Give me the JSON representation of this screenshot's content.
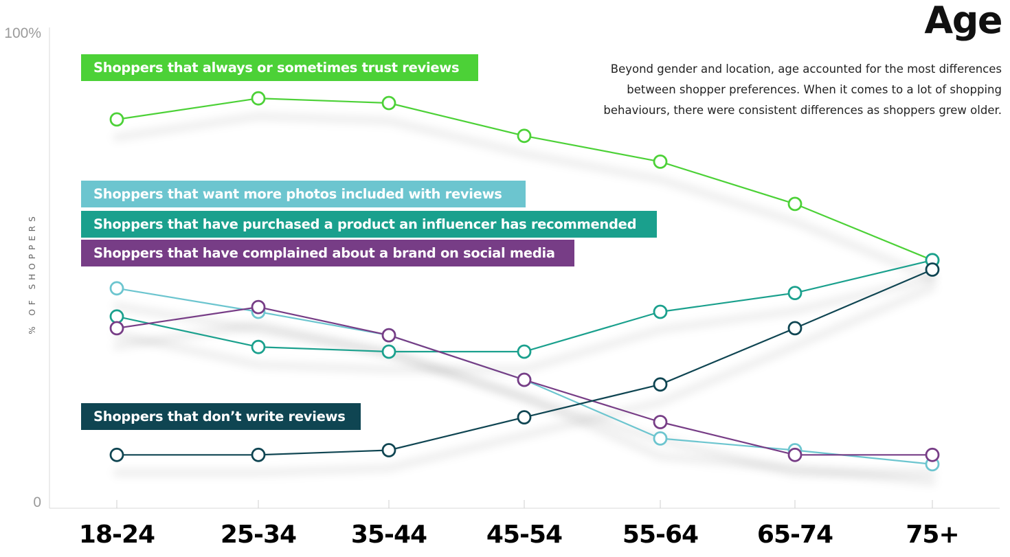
{
  "header": {
    "title": "Age",
    "description": "Beyond gender and location, age accounted for the most differences between shopper preferences. When it comes to a lot of shopping behaviours, there were consistent differences as shoppers grew older."
  },
  "chart_data": {
    "type": "line",
    "title": "Age",
    "xlabel": "",
    "ylabel": "% OF SHOPPERS",
    "ylim": [
      0,
      100
    ],
    "ytick_labels": [
      "0",
      "100%"
    ],
    "categories": [
      "18-24",
      "25-34",
      "35-44",
      "45-54",
      "55-64",
      "65-74",
      "75+"
    ],
    "series": [
      {
        "name": "Shoppers that always or sometimes trust reviews",
        "color": "#4cd137",
        "values": [
          82,
          86.5,
          85.5,
          78.5,
          73,
          64,
          52
        ]
      },
      {
        "name": "Shoppers that want more photos included with reviews",
        "color": "#6cc5cf",
        "values": [
          46,
          41,
          36,
          26.5,
          14,
          11.5,
          8.5
        ]
      },
      {
        "name": "Shoppers that have purchased a product an influencer has recommended",
        "color": "#1aa08d",
        "values": [
          40,
          33.5,
          32.5,
          32.5,
          41,
          45,
          52
        ]
      },
      {
        "name": "Shoppers that have complained about a brand on social media",
        "color": "#773d86",
        "values": [
          37.5,
          42,
          36,
          26.5,
          17.5,
          10.5,
          10.5
        ]
      },
      {
        "name": "Shoppers that don’t write reviews",
        "color": "#0f4552",
        "values": [
          10.5,
          10.5,
          11.5,
          18.5,
          25.5,
          37.5,
          50
        ]
      }
    ]
  }
}
